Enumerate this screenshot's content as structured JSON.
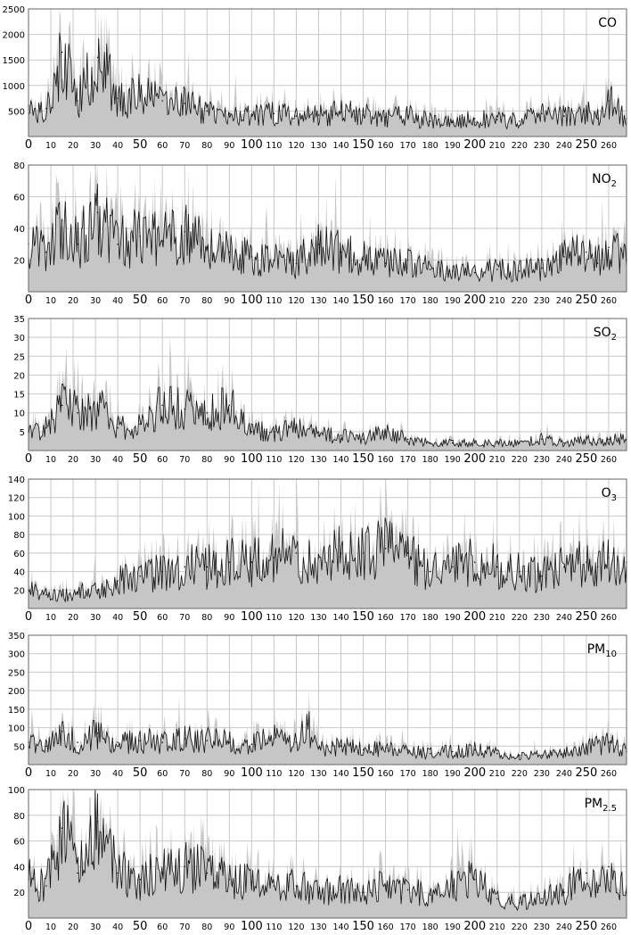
{
  "colors": {
    "background": "#ffffff",
    "grid": "#c8c8c8",
    "fill": "#c6c6c6",
    "line": "#111111",
    "axis": "#666666"
  },
  "chart_data": [
    {
      "type": "area",
      "title": "CO",
      "title_main": "CO",
      "title_sub": "",
      "xlim": [
        0,
        268
      ],
      "ylim": [
        0,
        2500
      ],
      "yticks": [
        500,
        1000,
        1500,
        2000,
        2500
      ],
      "xticks": [
        0,
        10,
        20,
        30,
        40,
        50,
        60,
        70,
        80,
        90,
        100,
        110,
        120,
        130,
        140,
        150,
        160,
        170,
        180,
        190,
        200,
        210,
        220,
        230,
        240,
        250,
        260
      ],
      "grid": true,
      "series": [
        {
          "x": [
            0,
            8,
            15,
            22,
            31,
            40,
            50,
            60,
            70,
            80,
            90,
            100,
            110,
            120,
            130,
            140,
            150,
            160,
            170,
            180,
            190,
            200,
            210,
            220,
            230,
            240,
            250,
            255,
            260,
            268
          ],
          "y": [
            600,
            550,
            1650,
            700,
            1550,
            750,
            800,
            700,
            650,
            500,
            450,
            400,
            450,
            400,
            420,
            480,
            420,
            380,
            400,
            300,
            280,
            350,
            330,
            300,
            450,
            400,
            500,
            350,
            700,
            350
          ],
          "values": [
            600,
            550,
            1650,
            700,
            1550,
            750,
            800,
            700,
            650,
            500,
            450,
            400,
            450,
            400,
            420,
            480,
            420,
            380,
            400,
            300,
            280,
            350,
            330,
            300,
            450,
            400,
            500,
            350,
            700,
            350
          ]
        }
      ]
    },
    {
      "type": "area",
      "title": "NO2",
      "title_main": "NO",
      "title_sub": "2",
      "xlim": [
        0,
        268
      ],
      "ylim": [
        0,
        80
      ],
      "yticks": [
        20,
        40,
        60,
        80
      ],
      "xticks": [
        0,
        10,
        20,
        30,
        40,
        50,
        60,
        70,
        80,
        90,
        100,
        110,
        120,
        130,
        140,
        150,
        160,
        170,
        180,
        190,
        200,
        210,
        220,
        230,
        240,
        250,
        260
      ],
      "grid": true,
      "series": [
        {
          "x": [
            0,
            8,
            15,
            22,
            31,
            40,
            50,
            60,
            70,
            80,
            90,
            100,
            110,
            120,
            130,
            140,
            150,
            160,
            170,
            180,
            190,
            200,
            210,
            220,
            230,
            240,
            250,
            255,
            260,
            268
          ],
          "y": [
            30,
            25,
            45,
            30,
            50,
            30,
            35,
            32,
            38,
            28,
            25,
            22,
            20,
            18,
            30,
            25,
            22,
            18,
            20,
            14,
            13,
            12,
            14,
            13,
            15,
            22,
            25,
            18,
            28,
            20
          ],
          "values": [
            30,
            25,
            45,
            30,
            50,
            30,
            35,
            32,
            38,
            28,
            25,
            22,
            20,
            18,
            30,
            25,
            22,
            18,
            20,
            14,
            13,
            12,
            14,
            13,
            15,
            22,
            25,
            18,
            28,
            20
          ]
        }
      ]
    },
    {
      "type": "area",
      "title": "SO2",
      "title_main": "SO",
      "title_sub": "2",
      "xlim": [
        0,
        268
      ],
      "ylim": [
        0,
        35
      ],
      "yticks": [
        5,
        10,
        15,
        20,
        25,
        30,
        35
      ],
      "xticks": [
        0,
        10,
        20,
        30,
        40,
        50,
        60,
        70,
        80,
        90,
        100,
        110,
        120,
        130,
        140,
        150,
        160,
        170,
        180,
        190,
        200,
        210,
        220,
        230,
        240,
        250,
        260
      ],
      "grid": true,
      "series": [
        {
          "x": [
            0,
            8,
            15,
            22,
            31,
            40,
            50,
            60,
            70,
            80,
            90,
            100,
            110,
            120,
            130,
            140,
            150,
            160,
            170,
            180,
            190,
            200,
            210,
            220,
            230,
            240,
            250,
            255,
            260,
            268
          ],
          "y": [
            5,
            6,
            12,
            10,
            12,
            6,
            7,
            12,
            11,
            10,
            12,
            5,
            5,
            6,
            4,
            4,
            3,
            5,
            3,
            2,
            2,
            2,
            2,
            2,
            3,
            2,
            3,
            2,
            3,
            3
          ],
          "values": [
            5,
            6,
            12,
            10,
            12,
            6,
            7,
            12,
            11,
            10,
            12,
            5,
            5,
            6,
            4,
            4,
            3,
            5,
            3,
            2,
            2,
            2,
            2,
            2,
            3,
            2,
            3,
            2,
            3,
            3
          ]
        }
      ]
    },
    {
      "type": "area",
      "title": "O3",
      "title_main": "O",
      "title_sub": "3",
      "xlim": [
        0,
        268
      ],
      "ylim": [
        0,
        140
      ],
      "yticks": [
        20,
        40,
        60,
        80,
        100,
        120,
        140
      ],
      "xticks": [
        0,
        10,
        20,
        30,
        40,
        50,
        60,
        70,
        80,
        90,
        100,
        110,
        120,
        130,
        140,
        150,
        160,
        170,
        180,
        190,
        200,
        210,
        220,
        230,
        240,
        250,
        260
      ],
      "grid": true,
      "series": [
        {
          "x": [
            0,
            8,
            15,
            22,
            31,
            40,
            50,
            60,
            70,
            80,
            90,
            100,
            110,
            120,
            130,
            140,
            150,
            160,
            170,
            180,
            190,
            200,
            210,
            220,
            230,
            240,
            250,
            255,
            260,
            268
          ],
          "y": [
            20,
            15,
            15,
            18,
            20,
            30,
            35,
            40,
            45,
            45,
            50,
            50,
            55,
            60,
            55,
            60,
            60,
            65,
            60,
            40,
            45,
            50,
            45,
            40,
            35,
            45,
            50,
            45,
            55,
            50
          ],
          "values": [
            20,
            15,
            15,
            18,
            20,
            30,
            35,
            40,
            45,
            45,
            50,
            50,
            55,
            60,
            55,
            60,
            60,
            65,
            60,
            40,
            45,
            50,
            45,
            40,
            35,
            45,
            50,
            45,
            55,
            50
          ]
        }
      ]
    },
    {
      "type": "area",
      "title": "PM10",
      "title_main": "PM",
      "title_sub": "10",
      "xlim": [
        0,
        268
      ],
      "ylim": [
        0,
        350
      ],
      "yticks": [
        50,
        100,
        150,
        200,
        250,
        300,
        350
      ],
      "xticks": [
        0,
        10,
        20,
        30,
        40,
        50,
        60,
        70,
        80,
        90,
        100,
        110,
        120,
        130,
        140,
        150,
        160,
        170,
        180,
        190,
        200,
        210,
        220,
        230,
        240,
        250,
        260
      ],
      "grid": true,
      "series": [
        {
          "x": [
            0,
            8,
            15,
            22,
            31,
            40,
            50,
            60,
            70,
            80,
            90,
            100,
            110,
            120,
            125,
            130,
            140,
            150,
            160,
            170,
            180,
            190,
            200,
            210,
            220,
            230,
            240,
            250,
            260,
            268
          ],
          "y": [
            60,
            50,
            90,
            60,
            85,
            60,
            65,
            60,
            70,
            65,
            60,
            55,
            70,
            60,
            110,
            45,
            50,
            40,
            45,
            40,
            30,
            35,
            40,
            30,
            25,
            25,
            30,
            45,
            60,
            35
          ],
          "values": [
            60,
            50,
            90,
            60,
            85,
            60,
            65,
            60,
            70,
            65,
            60,
            55,
            70,
            60,
            110,
            45,
            50,
            40,
            45,
            40,
            30,
            35,
            40,
            30,
            25,
            25,
            30,
            45,
            60,
            35
          ]
        }
      ]
    },
    {
      "type": "area",
      "title": "PM2.5",
      "title_main": "PM",
      "title_sub": "2.5",
      "xlim": [
        0,
        268
      ],
      "ylim": [
        0,
        100
      ],
      "yticks": [
        20,
        40,
        60,
        80,
        100
      ],
      "xticks": [
        0,
        10,
        20,
        30,
        40,
        50,
        60,
        70,
        80,
        90,
        100,
        110,
        120,
        130,
        140,
        150,
        160,
        170,
        180,
        190,
        200,
        210,
        220,
        230,
        240,
        250,
        260
      ],
      "grid": true,
      "series": [
        {
          "x": [
            0,
            8,
            15,
            22,
            31,
            40,
            50,
            60,
            70,
            80,
            90,
            100,
            110,
            120,
            130,
            140,
            150,
            160,
            170,
            180,
            190,
            200,
            210,
            220,
            230,
            240,
            250,
            255,
            260,
            268
          ],
          "y": [
            30,
            25,
            70,
            35,
            75,
            35,
            30,
            35,
            40,
            35,
            30,
            28,
            25,
            25,
            20,
            22,
            20,
            25,
            22,
            18,
            25,
            30,
            15,
            12,
            15,
            20,
            35,
            20,
            40,
            20
          ],
          "values": [
            30,
            25,
            70,
            35,
            75,
            35,
            30,
            35,
            40,
            35,
            30,
            28,
            25,
            25,
            20,
            22,
            20,
            25,
            22,
            18,
            25,
            30,
            15,
            12,
            15,
            20,
            35,
            20,
            40,
            20
          ]
        }
      ]
    }
  ]
}
